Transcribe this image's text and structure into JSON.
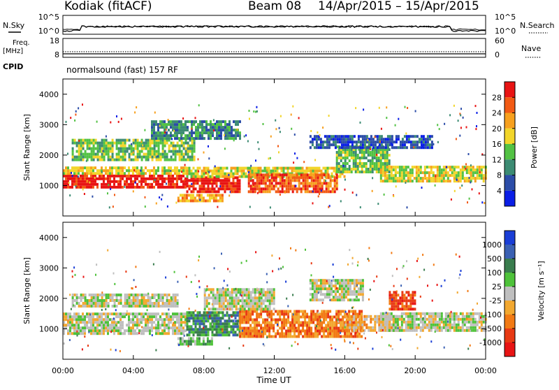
{
  "header": {
    "station": "Kodiak (fitACF)",
    "beam": "Beam 08",
    "date_range": "14/Apr/2015 – 15/Apr/2015"
  },
  "sky_panel": {
    "left_label": "N.Sky",
    "right_label": "N.Search",
    "left_ticks": [
      "10^5",
      "10^0"
    ],
    "right_ticks": [
      "10^5",
      "10^0"
    ]
  },
  "freq_panel": {
    "left_label_1": "Freq.",
    "left_label_2": "[MHz]",
    "right_label": "Nave",
    "left_ticks": [
      "18",
      "8"
    ],
    "right_ticks": [
      "60",
      "0"
    ],
    "cpid_label": "CPID",
    "cpid_text": "normalsound (fast) 157 RF"
  },
  "chart_data": [
    {
      "type": "heatmap",
      "name": "power",
      "ylabel": "Slant Range [km]",
      "ylim": [
        0,
        4500
      ],
      "yticks": [
        "1000",
        "2000",
        "3000",
        "4000"
      ],
      "xlim": [
        0,
        24
      ],
      "colorbar": {
        "label": "Power [dB]",
        "ticks": [
          "4",
          "8",
          "12",
          "16",
          "20",
          "24",
          "28"
        ],
        "colors": [
          "#0a1ee6",
          "#2c4da8",
          "#3c8b73",
          "#53c244",
          "#f2d52a",
          "#f7a01e",
          "#f25a14",
          "#e81414"
        ]
      },
      "bands": [
        {
          "t0": 0,
          "t1": 7,
          "r0": 900,
          "r1": 1350,
          "level": 7
        },
        {
          "t0": 0,
          "t1": 7,
          "r0": 1350,
          "r1": 1550,
          "level": 4
        },
        {
          "t0": 0.5,
          "t1": 7.5,
          "r0": 1800,
          "r1": 2500,
          "level": 3
        },
        {
          "t0": 7,
          "t1": 10,
          "r0": 750,
          "r1": 1250,
          "level": 7
        },
        {
          "t0": 7,
          "t1": 16,
          "r0": 1250,
          "r1": 1550,
          "level": 4
        },
        {
          "t0": 10.5,
          "t1": 15.5,
          "r0": 750,
          "r1": 1350,
          "level": 6
        },
        {
          "t0": 6.5,
          "t1": 9,
          "r0": 450,
          "r1": 650,
          "level": 5
        },
        {
          "t0": 15.5,
          "t1": 18.5,
          "r0": 1400,
          "r1": 2300,
          "level": 3
        },
        {
          "t0": 18,
          "t1": 24,
          "r0": 1100,
          "r1": 1600,
          "level": 4
        },
        {
          "t0": 14,
          "t1": 21,
          "r0": 2200,
          "r1": 2600,
          "level": 1
        },
        {
          "t0": 5,
          "t1": 10,
          "r0": 2500,
          "r1": 3100,
          "level": 2
        }
      ]
    },
    {
      "type": "heatmap",
      "name": "velocity",
      "ylabel": "Slant Range [km]",
      "ylim": [
        0,
        4500
      ],
      "yticks": [
        "1000",
        "2000",
        "3000",
        "4000"
      ],
      "xlim": [
        0,
        24
      ],
      "xticks": [
        "00:00",
        "04:00",
        "08:00",
        "12:00",
        "16:00",
        "20:00",
        "00:00"
      ],
      "xlabel": "Time UT",
      "colorbar": {
        "label": "Velocity [m s⁻¹]",
        "ticks": [
          "1000",
          "500",
          "100",
          "25",
          "-25",
          "-100",
          "-500",
          "-1000"
        ],
        "colors": [
          "#1a3ed6",
          "#3b61b3",
          "#3a7d4e",
          "#4ec23a",
          "#bfbfbf",
          "#f2a830",
          "#f27a14",
          "#e83a14",
          "#e81414"
        ]
      },
      "bands": [
        {
          "t0": 0,
          "t1": 7,
          "r0": 800,
          "r1": 1500,
          "level": 4
        },
        {
          "t0": 0.5,
          "t1": 6.5,
          "r0": 1700,
          "r1": 2100,
          "level": 4
        },
        {
          "t0": 7,
          "t1": 10,
          "r0": 750,
          "r1": 1500,
          "level": 2
        },
        {
          "t0": 6.5,
          "t1": 8.5,
          "r0": 450,
          "r1": 650,
          "level": 3
        },
        {
          "t0": 10,
          "t1": 17,
          "r0": 700,
          "r1": 1600,
          "level": 6
        },
        {
          "t0": 16,
          "t1": 19,
          "r0": 900,
          "r1": 1400,
          "level": 5
        },
        {
          "t0": 18.5,
          "t1": 20,
          "r0": 1600,
          "r1": 2200,
          "level": 7
        },
        {
          "t0": 18,
          "t1": 24,
          "r0": 900,
          "r1": 1500,
          "level": 4
        },
        {
          "t0": 8,
          "t1": 12,
          "r0": 1600,
          "r1": 2300,
          "level": 4
        },
        {
          "t0": 14,
          "t1": 17,
          "r0": 1900,
          "r1": 2600,
          "level": 4
        }
      ]
    }
  ]
}
